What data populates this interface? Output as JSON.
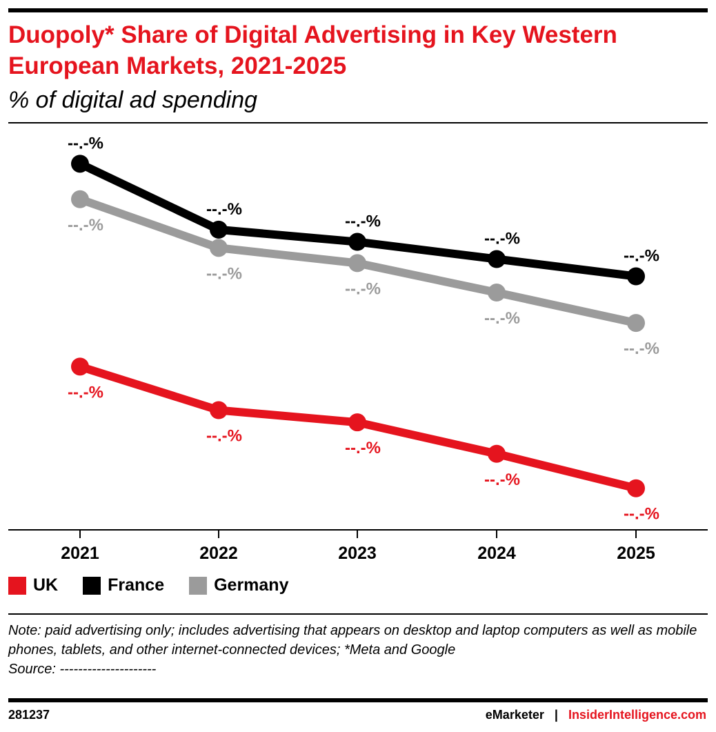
{
  "title": "Duopoly* Share of Digital Advertising in Key Western European Markets, 2021-2025",
  "subtitle": "% of digital ad spending",
  "chart_data": {
    "type": "line",
    "title": "Duopoly* Share of Digital Advertising in Key Western European Markets, 2021-2025",
    "subtitle": "% of digital ad spending",
    "categories": [
      "2021",
      "2022",
      "2023",
      "2024",
      "2025"
    ],
    "ylim": [
      40,
      80
    ],
    "grid": false,
    "legend_placement": "bottom-left",
    "series": [
      {
        "name": "UK",
        "color": "#e5141e",
        "values": [
          56.1,
          51.8,
          50.6,
          47.5,
          44.1
        ],
        "labels": [
          "--.-%",
          "--.-%",
          "--.-%",
          "--.-%",
          "--.-%"
        ],
        "label_position": "below"
      },
      {
        "name": "France",
        "color": "#000000",
        "values": [
          76.1,
          69.6,
          68.4,
          66.7,
          65.0
        ],
        "labels": [
          "--.-%",
          "--.-%",
          "--.-%",
          "--.-%",
          "--.-%"
        ],
        "label_position": "above"
      },
      {
        "name": "Germany",
        "color": "#9b9b9b",
        "values": [
          72.6,
          67.8,
          66.3,
          63.4,
          60.4
        ],
        "labels": [
          "--.-%",
          "--.-%",
          "--.-%",
          "--.-%",
          "--.-%"
        ],
        "label_position": "below"
      }
    ]
  },
  "note": "Note: paid advertising only; includes advertising that appears on desktop and laptop computers as well as mobile phones, tablets, and other internet-connected devices; *Meta and Google",
  "source": "Source: ---------------------",
  "footer": {
    "id": "281237",
    "brand_left": "eMarketer",
    "separator": "|",
    "brand_right": "InsiderIntelligence.com"
  }
}
